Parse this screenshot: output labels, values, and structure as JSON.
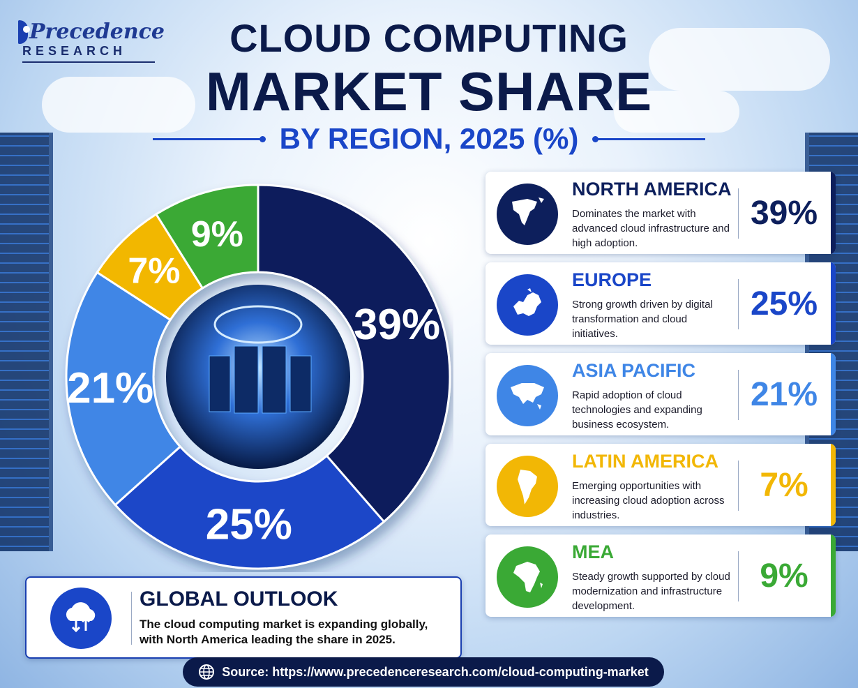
{
  "brand": {
    "name": "Precedence",
    "sub": "RESEARCH"
  },
  "title": {
    "line1": "CLOUD COMPUTING",
    "line2": "MARKET SHARE",
    "subtitle": "BY REGION, 2025 (%)"
  },
  "colors": {
    "north_america": "#0d1f5c",
    "europe": "#1a46c8",
    "asia_pacific": "#3f86e6",
    "latin_america": "#f2b705",
    "mea": "#3aa935"
  },
  "chart_data": {
    "type": "pie",
    "donut": true,
    "title": "CLOUD COMPUTING MARKET SHARE BY REGION, 2025 (%)",
    "categories": [
      "North America",
      "Europe",
      "Asia Pacific",
      "Latin America",
      "MEA"
    ],
    "values": [
      39,
      25,
      21,
      7,
      9
    ],
    "value_labels": [
      "39%",
      "25%",
      "21%",
      "7%",
      "9%"
    ],
    "colors": [
      "#0d1f5c",
      "#1a46c8",
      "#3f86e6",
      "#f2b705",
      "#3aa935"
    ],
    "start": "top, clockwise"
  },
  "regions": [
    {
      "name": "NORTH AMERICA",
      "desc": "Dominates the market with advanced cloud infrastructure and high adoption.",
      "value": "39%",
      "color": "#0d1f5c",
      "icon": "north-america-map-icon"
    },
    {
      "name": "EUROPE",
      "desc": "Strong growth driven by digital transformation and cloud initiatives.",
      "value": "25%",
      "color": "#1a46c8",
      "icon": "europe-map-icon"
    },
    {
      "name": "ASIA PACIFIC",
      "desc": "Rapid adoption of cloud technologies and expanding business ecosystem.",
      "value": "21%",
      "color": "#3f86e6",
      "icon": "asia-map-icon"
    },
    {
      "name": "LATIN AMERICA",
      "desc": "Emerging opportunities with increasing cloud adoption across industries.",
      "value": "7%",
      "color": "#f2b705",
      "icon": "south-america-map-icon"
    },
    {
      "name": "MEA",
      "desc": "Steady growth supported by cloud modernization and infrastructure development.",
      "value": "9%",
      "color": "#3aa935",
      "icon": "africa-map-icon"
    }
  ],
  "outlook": {
    "heading": "GLOBAL OUTLOOK",
    "text": "The cloud computing market is expanding globally, with North America leading the share in 2025.",
    "icon": "cloud-transfer-icon"
  },
  "source": {
    "text": "Source: https://www.precedenceresearch.com/cloud-computing-market",
    "icon": "globe-icon"
  }
}
